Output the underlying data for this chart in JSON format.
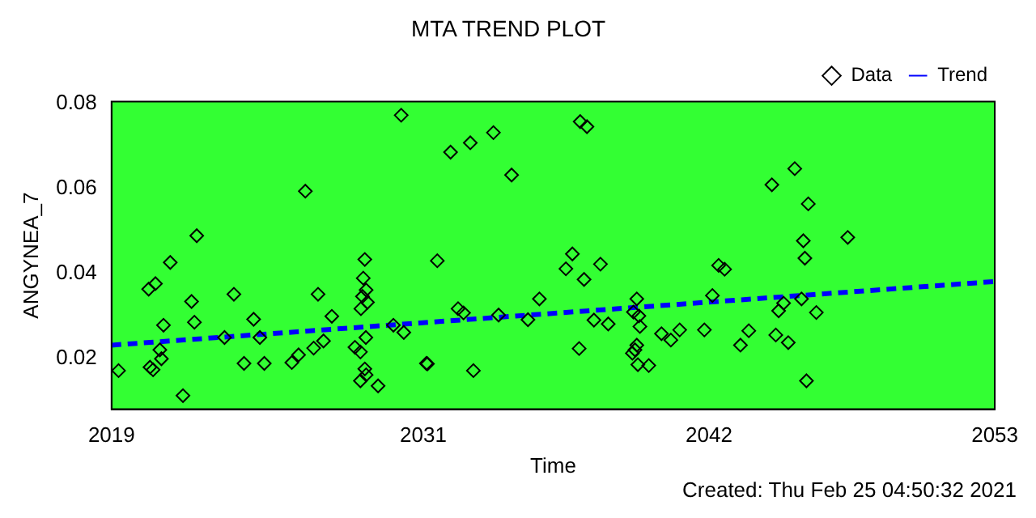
{
  "chart_data": {
    "type": "scatter",
    "title": "MTA TREND PLOT",
    "xlabel": "Time",
    "ylabel": "ANGYNEA_7",
    "xlim": [
      2019,
      2053
    ],
    "xticks": [
      2019,
      2031,
      2042,
      2053
    ],
    "ylim": [
      0.008,
      0.0805
    ],
    "yticks": [
      0.02,
      0.04,
      0.06,
      0.08
    ],
    "grid": false,
    "legend": "top right",
    "annotations": [
      "Created: Thu Feb 25 04:50:32 2021"
    ],
    "series": [
      {
        "name": "Data",
        "type": "scatter",
        "marker": "diamond",
        "color": "#000000",
        "x": [
          2030.15,
          2026.46,
          2022.28,
          2021.26,
          2020.43,
          2020.69,
          2022.08,
          2023.71,
          2021.0,
          2022.19,
          2024.47,
          2026.95,
          2027.48,
          2028.75,
          2028.69,
          2028.8,
          2028.66,
          2028.85,
          2028.6,
          2019.27,
          2020.6,
          2020.92,
          2020.86,
          2020.48,
          2021.75,
          2023.35,
          2024.71,
          2024.1,
          2024.88,
          2025.94,
          2026.2,
          2026.78,
          2027.16,
          2028.37,
          2028.58,
          2028.79,
          2029.85,
          2030.25,
          2028.75,
          2028.8,
          2028.58,
          2029.26,
          2031.12,
          2037.04,
          2037.3,
          2033.7,
          2032.81,
          2032.05,
          2034.4,
          2031.54,
          2036.74,
          2036.49,
          2037.82,
          2037.19,
          2035.47,
          2032.34,
          2032.55,
          2033.9,
          2035.03,
          2037.57,
          2038.12,
          2039.22,
          2039.09,
          2039.3,
          2039.34,
          2040.17,
          2040.53,
          2040.87,
          2041.82,
          2037.0,
          2039.22,
          2039.15,
          2039.05,
          2039.26,
          2039.68,
          2031.16,
          2032.93,
          2042.13,
          2042.37,
          2042.6,
          2045.3,
          2044.42,
          2045.82,
          2047.34,
          2045.63,
          2045.69,
          2044.87,
          2044.68,
          2045.56,
          2046.13,
          2043.53,
          2044.57,
          2045.05,
          2043.21,
          2045.75
        ],
        "values": [
          0.0773,
          0.0594,
          0.0489,
          0.0426,
          0.0363,
          0.0376,
          0.0334,
          0.0351,
          0.0278,
          0.0285,
          0.0292,
          0.0351,
          0.0299,
          0.0433,
          0.0389,
          0.0361,
          0.0346,
          0.0332,
          0.0317,
          0.0171,
          0.0173,
          0.0199,
          0.022,
          0.0179,
          0.0112,
          0.0249,
          0.0249,
          0.0188,
          0.0188,
          0.019,
          0.0208,
          0.0224,
          0.0241,
          0.0226,
          0.0215,
          0.0249,
          0.0278,
          0.0261,
          0.0175,
          0.0161,
          0.0147,
          0.0135,
          0.0188,
          0.0758,
          0.0746,
          0.0732,
          0.0708,
          0.0686,
          0.0632,
          0.043,
          0.0446,
          0.0411,
          0.0422,
          0.0386,
          0.034,
          0.0317,
          0.0307,
          0.0302,
          0.0291,
          0.029,
          0.0281,
          0.034,
          0.0309,
          0.03,
          0.0275,
          0.0258,
          0.0243,
          0.0267,
          0.0267,
          0.0223,
          0.0231,
          0.022,
          0.0212,
          0.0185,
          0.0183,
          0.0187,
          0.0171,
          0.0348,
          0.0419,
          0.041,
          0.0647,
          0.0609,
          0.0564,
          0.0485,
          0.0477,
          0.0436,
          0.033,
          0.0312,
          0.034,
          0.0308,
          0.0265,
          0.0255,
          0.0237,
          0.0231,
          0.0147
        ]
      },
      {
        "name": "Trend",
        "type": "line",
        "marker": "none",
        "line_style": "dashed",
        "color": "#0000ff",
        "x": [
          2019,
          2053
        ],
        "values": [
          0.0231,
          0.0381
        ]
      }
    ]
  }
}
